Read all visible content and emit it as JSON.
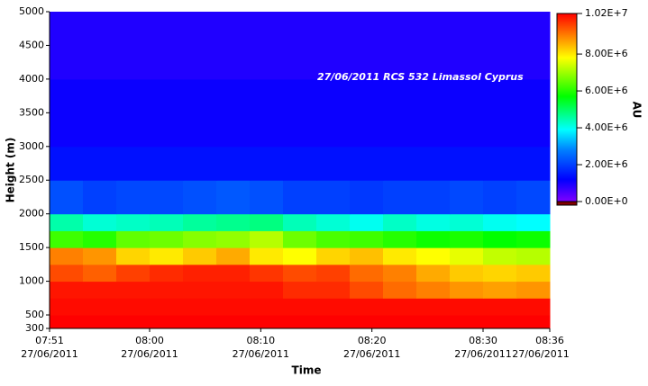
{
  "chart_data": {
    "type": "heatmap",
    "annotation": "27/06/2011 RCS 532 Limassol Cyprus",
    "xlabel": "Time",
    "ylabel": "Height (m)",
    "colorbar_label": "AU",
    "x_edges": [
      "07:51",
      "07:54",
      "07:57",
      "08:00",
      "08:03",
      "08:06",
      "08:09",
      "08:12",
      "08:15",
      "08:18",
      "08:21",
      "08:24",
      "08:27",
      "08:30",
      "08:33",
      "08:36"
    ],
    "y_edges": [
      300,
      500,
      750,
      1000,
      1250,
      1500,
      1750,
      2000,
      2500,
      3000,
      4000,
      5000
    ],
    "z": [
      [
        10200000,
        10200000,
        10200000,
        10200000,
        10200000,
        10200000,
        10200000,
        10200000,
        10200000,
        10200000,
        10200000,
        10200000,
        10200000,
        10200000,
        10200000
      ],
      [
        10100000,
        10100000,
        10100000,
        10100000,
        10100000,
        10100000,
        10100000,
        10100000,
        10100000,
        10100000,
        10100000,
        10100000,
        10100000,
        10100000,
        10100000
      ],
      [
        10000000,
        10000000,
        10000000,
        10000000,
        10000000,
        10000000,
        10000000,
        9800000,
        9800000,
        9500000,
        9200000,
        9000000,
        8800000,
        8700000,
        8800000
      ],
      [
        9500000,
        9300000,
        9600000,
        9800000,
        9900000,
        9900000,
        9700000,
        9500000,
        9600000,
        9200000,
        9000000,
        8600000,
        8300000,
        8200000,
        8300000
      ],
      [
        9000000,
        8800000,
        8200000,
        8000000,
        8300000,
        8600000,
        8000000,
        7800000,
        8200000,
        8400000,
        8000000,
        7800000,
        7600000,
        7300000,
        7200000
      ],
      [
        6200000,
        6000000,
        6500000,
        6600000,
        6800000,
        6900000,
        7200000,
        6600000,
        6300000,
        6200000,
        6000000,
        5800000,
        5900000,
        5700000,
        5800000
      ],
      [
        4500000,
        4200000,
        4300000,
        4400000,
        4600000,
        4700000,
        4800000,
        4400000,
        4200000,
        4000000,
        4300000,
        4100000,
        4200000,
        4000000,
        3900000
      ],
      [
        2200000,
        2000000,
        2100000,
        2100000,
        2200000,
        2300000,
        2200000,
        2000000,
        2000000,
        1900000,
        2000000,
        2000000,
        2100000,
        2000000,
        2100000
      ],
      [
        1400000,
        1400000,
        1400000,
        1400000,
        1400000,
        1400000,
        1400000,
        1400000,
        1400000,
        1400000,
        1400000,
        1400000,
        1400000,
        1400000,
        1400000
      ],
      [
        1100000,
        1100000,
        1100000,
        1100000,
        1100000,
        1100000,
        1100000,
        1100000,
        1100000,
        1100000,
        1100000,
        1100000,
        1100000,
        1100000,
        1100000
      ],
      [
        900000,
        900000,
        900000,
        900000,
        900000,
        900000,
        900000,
        900000,
        900000,
        900000,
        900000,
        900000,
        900000,
        900000,
        900000
      ]
    ],
    "xlim": [
      "07:51",
      "08:36"
    ],
    "xticks": [
      "07:51",
      "08:00",
      "08:10",
      "08:20",
      "08:30",
      "08:36"
    ],
    "xtick_date": "27/06/2011",
    "ylim": [
      300,
      5000
    ],
    "yticks": [
      300,
      500,
      1000,
      1500,
      2000,
      2500,
      3000,
      3500,
      4000,
      4500,
      5000
    ],
    "zlim": [
      0,
      10200000
    ],
    "zticks": [
      {
        "value": 0,
        "label": "0.00E+0"
      },
      {
        "value": 2000000,
        "label": "2.00E+6"
      },
      {
        "value": 4000000,
        "label": "4.00E+6"
      },
      {
        "value": 6000000,
        "label": "6.00E+6"
      },
      {
        "value": 8000000,
        "label": "8.00E+6"
      },
      {
        "value": 10200000,
        "label": "1.02E+7"
      }
    ],
    "colormap": [
      {
        "value": 0,
        "color": "#8000ff"
      },
      {
        "value": 1200000,
        "color": "#0000ff"
      },
      {
        "value": 2800000,
        "color": "#0080ff"
      },
      {
        "value": 3900000,
        "color": "#00ffff"
      },
      {
        "value": 5700000,
        "color": "#00ff00"
      },
      {
        "value": 7800000,
        "color": "#ffff00"
      },
      {
        "value": 9000000,
        "color": "#ff8000"
      },
      {
        "value": 10200000,
        "color": "#ff0000"
      }
    ]
  }
}
